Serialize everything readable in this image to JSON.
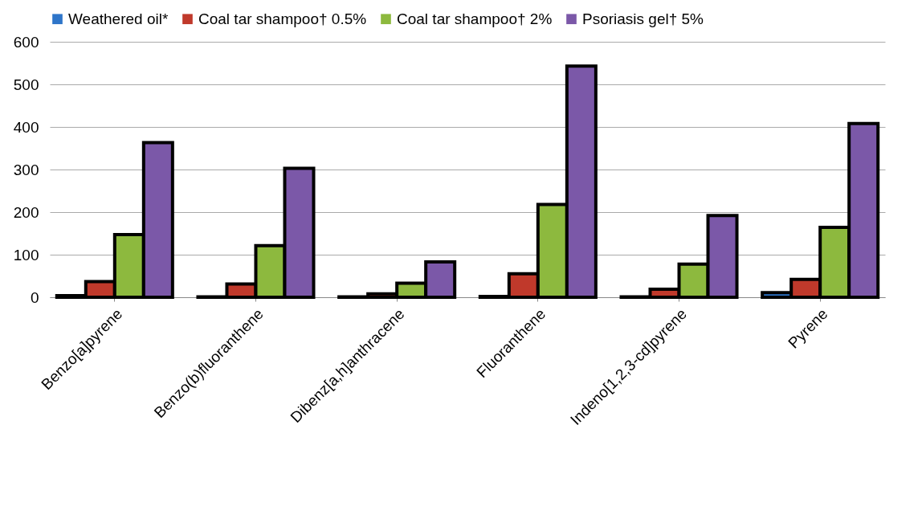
{
  "chart_data": {
    "type": "bar",
    "categories": [
      "Benzo[a]pyrene",
      "Benzo(b)fluoranthene",
      "Dibenz[a,h]anthracene",
      "Fluoranthene",
      "Indeno[1,2,3-cd]pyrene",
      "Pyrene"
    ],
    "series": [
      {
        "name": "Weathered oil*",
        "color": "#2e75c9",
        "values": [
          4,
          1,
          1,
          2,
          1,
          11
        ]
      },
      {
        "name": "Coal tar shampoo† 0.5%",
        "color": "#c0392b",
        "values": [
          37,
          31,
          8,
          55,
          19,
          42
        ]
      },
      {
        "name": "Coal tar shampoo† 2%",
        "color": "#8db93e",
        "values": [
          147,
          121,
          33,
          218,
          78,
          164
        ]
      },
      {
        "name": "Psoriasis  gel† 5%",
        "color": "#7b58a8",
        "values": [
          363,
          303,
          83,
          543,
          192,
          408
        ]
      }
    ],
    "ylim": [
      0,
      600
    ],
    "yticks": [
      0,
      100,
      200,
      300,
      400,
      500,
      600
    ],
    "grid": "y",
    "legend": "top"
  }
}
